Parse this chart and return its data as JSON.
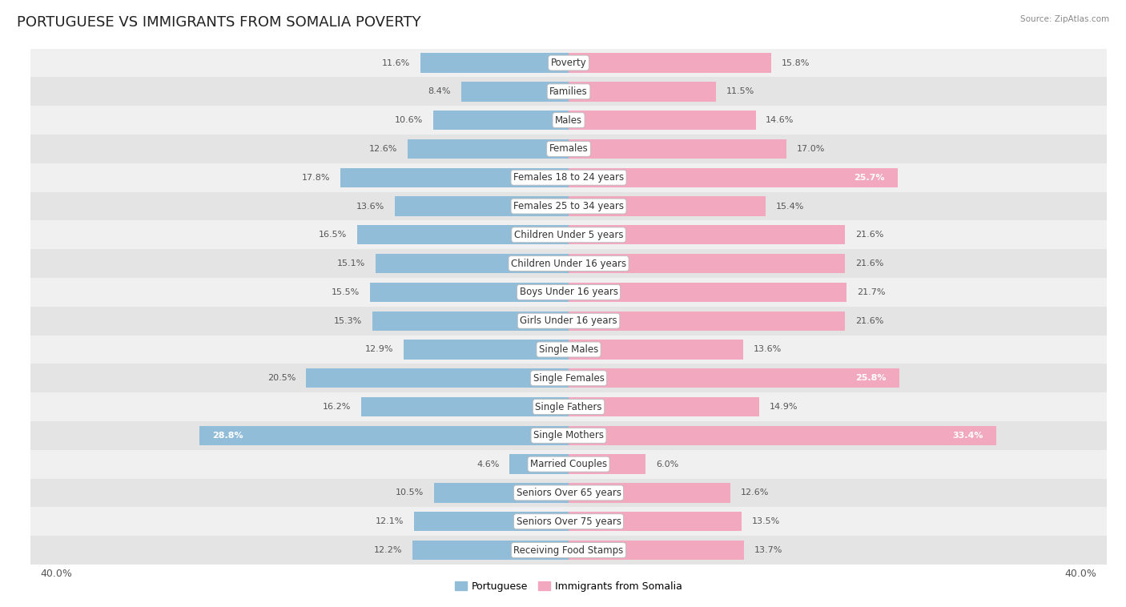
{
  "title": "PORTUGUESE VS IMMIGRANTS FROM SOMALIA POVERTY",
  "source": "Source: ZipAtlas.com",
  "categories": [
    "Poverty",
    "Families",
    "Males",
    "Females",
    "Females 18 to 24 years",
    "Females 25 to 34 years",
    "Children Under 5 years",
    "Children Under 16 years",
    "Boys Under 16 years",
    "Girls Under 16 years",
    "Single Males",
    "Single Females",
    "Single Fathers",
    "Single Mothers",
    "Married Couples",
    "Seniors Over 65 years",
    "Seniors Over 75 years",
    "Receiving Food Stamps"
  ],
  "portuguese": [
    11.6,
    8.4,
    10.6,
    12.6,
    17.8,
    13.6,
    16.5,
    15.1,
    15.5,
    15.3,
    12.9,
    20.5,
    16.2,
    28.8,
    4.6,
    10.5,
    12.1,
    12.2
  ],
  "somalia": [
    15.8,
    11.5,
    14.6,
    17.0,
    25.7,
    15.4,
    21.6,
    21.6,
    21.7,
    21.6,
    13.6,
    25.8,
    14.9,
    33.4,
    6.0,
    12.6,
    13.5,
    13.7
  ],
  "blue_color": "#92bdd9",
  "pink_color": "#f2a8bf",
  "row_bg_light": "#f0f0f0",
  "row_bg_dark": "#e4e4e4",
  "axis_limit": 40.0,
  "bar_height": 0.68,
  "title_fontsize": 13,
  "cat_fontsize": 8.5,
  "value_fontsize": 8.0,
  "legend_fontsize": 9,
  "inside_threshold_blue": 22.0,
  "inside_threshold_pink": 22.0
}
